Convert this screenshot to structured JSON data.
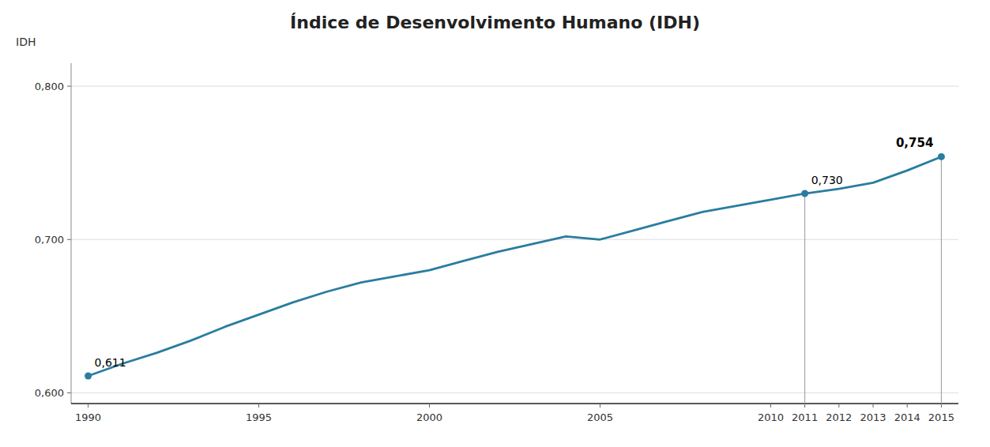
{
  "chart_data": {
    "type": "line",
    "title": "Índice de Desenvolvimento Humano (IDH)",
    "y_label": "IDH",
    "categories": [
      "1990",
      null,
      null,
      null,
      null,
      "1995",
      null,
      null,
      null,
      null,
      "2000",
      null,
      null,
      null,
      null,
      "2005",
      null,
      null,
      null,
      null,
      "2010",
      "2011",
      "2012",
      "2013",
      "2014",
      "2015"
    ],
    "series": [
      {
        "name": "IDH",
        "color": "#2a7da0",
        "values": [
          0.611,
          0.619,
          0.626,
          0.634,
          0.643,
          0.651,
          0.659,
          0.666,
          0.672,
          0.676,
          0.68,
          0.686,
          0.692,
          0.697,
          0.702,
          0.7,
          0.706,
          0.712,
          0.718,
          0.722,
          0.726,
          0.73,
          0.733,
          0.737,
          0.745,
          0.754
        ],
        "value_labels": [
          "0,611",
          null,
          null,
          null,
          null,
          null,
          null,
          null,
          null,
          null,
          null,
          null,
          null,
          null,
          null,
          null,
          null,
          null,
          null,
          null,
          null,
          "0,730",
          null,
          null,
          null,
          "0,754"
        ]
      }
    ],
    "vlines": [
      "2011",
      "2015"
    ],
    "ylim": [
      0.593,
      0.815
    ],
    "yticks": [
      {
        "value": 0.6,
        "label": "0,600"
      },
      {
        "value": 0.7,
        "label": "0,700"
      },
      {
        "value": 0.8,
        "label": "0,800"
      }
    ],
    "grid": true
  }
}
